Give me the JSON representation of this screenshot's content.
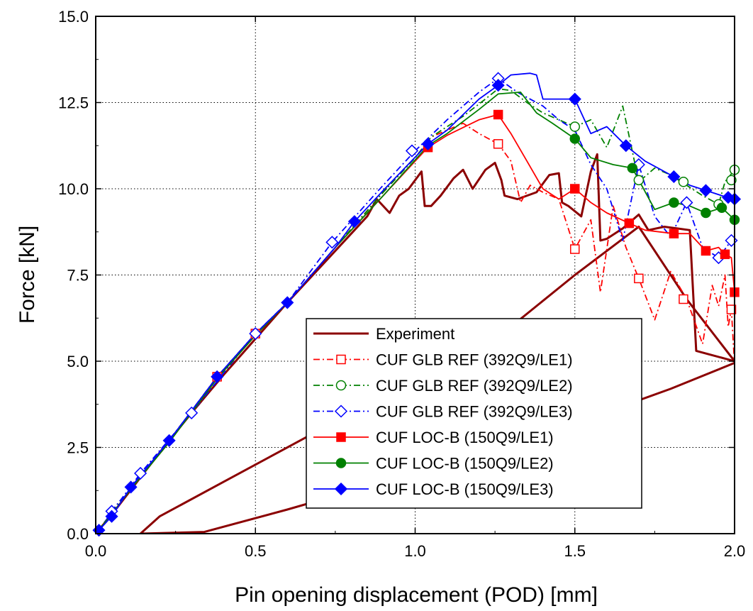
{
  "chart_data": {
    "type": "line",
    "title": "",
    "xlabel": "Pin opening displacement (POD) [mm]",
    "ylabel": "Force [kN]",
    "xlim": [
      0.0,
      2.0
    ],
    "ylim": [
      0.0,
      15.0
    ],
    "xticks": [
      0.0,
      0.5,
      1.0,
      1.5,
      2.0
    ],
    "xtick_labels": [
      "0.0",
      "0.5",
      "1.0",
      "1.5",
      "2.0"
    ],
    "yticks": [
      0.0,
      2.5,
      5.0,
      7.5,
      10.0,
      12.5,
      15.0
    ],
    "ytick_labels": [
      "0.0",
      "2.5",
      "5.0",
      "7.5",
      "10.0",
      "12.5",
      "15.0"
    ],
    "grid": true,
    "legend_position": "bottom-right",
    "series": [
      {
        "name": "Experiment",
        "color": "#8b0000",
        "style": "solid",
        "marker": "none",
        "stroke_width": 3,
        "x": [
          0.0,
          0.05,
          0.1,
          0.2,
          0.3,
          0.4,
          0.5,
          0.6,
          0.7,
          0.8,
          0.85,
          0.88,
          0.92,
          0.95,
          0.98,
          1.02,
          1.03,
          1.05,
          1.08,
          1.12,
          1.15,
          1.18,
          1.22,
          1.25,
          1.27,
          1.28,
          1.32,
          1.38,
          1.42,
          1.45,
          1.46,
          1.48,
          1.52,
          1.55,
          1.57,
          1.58,
          1.6,
          1.65,
          1.7,
          1.73,
          1.78,
          1.82,
          1.86,
          1.88,
          1.92,
          2.0,
          1.85,
          1.7,
          1.5,
          1.3,
          1.0,
          0.7,
          0.4,
          0.2,
          0.14,
          0.34,
          0.6,
          0.9,
          1.2,
          1.5,
          1.8,
          2.0
        ],
        "y": [
          0.0,
          0.55,
          1.15,
          2.35,
          3.5,
          4.6,
          5.65,
          6.7,
          7.7,
          8.7,
          9.2,
          9.7,
          9.3,
          9.8,
          10.0,
          10.5,
          9.5,
          9.5,
          9.8,
          10.3,
          10.55,
          10.0,
          10.55,
          10.75,
          10.25,
          9.8,
          9.7,
          9.9,
          10.4,
          10.45,
          9.6,
          9.5,
          9.2,
          10.5,
          11.0,
          8.5,
          8.55,
          8.85,
          9.25,
          8.8,
          8.9,
          8.85,
          8.8,
          5.3,
          5.2,
          5.0,
          6.8,
          8.9,
          7.5,
          6.0,
          4.5,
          3.0,
          1.5,
          0.5,
          0.0,
          0.05,
          0.7,
          1.5,
          2.3,
          3.2,
          4.2,
          4.95
        ]
      },
      {
        "name": "CUF GLB REF (392Q9/LE1)",
        "color": "#ff0000",
        "style": "dashdot",
        "marker": "square-open",
        "stroke_width": 1.8,
        "x": [
          0.0,
          0.05,
          0.11,
          0.23,
          0.38,
          0.5,
          0.6,
          0.75,
          0.9,
          1.0,
          1.05,
          1.15,
          1.2,
          1.26,
          1.3,
          1.33,
          1.36,
          1.4,
          1.45,
          1.5,
          1.55,
          1.58,
          1.62,
          1.66,
          1.7,
          1.75,
          1.8,
          1.85,
          1.9,
          1.93,
          1.95,
          1.97,
          1.98,
          1.99,
          2.0
        ],
        "y": [
          0.0,
          0.6,
          1.3,
          2.7,
          4.55,
          5.8,
          6.7,
          8.3,
          9.9,
          10.9,
          11.5,
          11.9,
          11.6,
          11.3,
          10.8,
          9.6,
          10.1,
          9.9,
          9.7,
          8.25,
          9.1,
          7.0,
          9.5,
          8.3,
          7.4,
          6.2,
          7.6,
          6.8,
          5.5,
          7.2,
          6.6,
          7.5,
          6.0,
          6.5,
          4.9
        ],
        "markers_x": [
          0.38,
          0.5,
          1.26,
          1.5,
          1.7,
          1.84,
          1.99
        ],
        "markers_y": [
          4.55,
          5.8,
          11.3,
          8.25,
          7.4,
          6.8,
          6.5
        ]
      },
      {
        "name": "CUF GLB REF (392Q9/LE2)",
        "color": "#008000",
        "style": "dashdot",
        "marker": "circle-open",
        "stroke_width": 1.8,
        "x": [
          0.0,
          0.05,
          0.11,
          0.23,
          0.38,
          0.5,
          0.6,
          0.75,
          0.9,
          1.0,
          1.05,
          1.15,
          1.22,
          1.26,
          1.3,
          1.35,
          1.4,
          1.45,
          1.5,
          1.55,
          1.6,
          1.65,
          1.7,
          1.75,
          1.8,
          1.85,
          1.9,
          1.95,
          1.97,
          2.0
        ],
        "y": [
          0.0,
          0.6,
          1.3,
          2.7,
          4.55,
          5.8,
          6.7,
          8.3,
          9.9,
          10.9,
          11.5,
          12.1,
          12.6,
          12.9,
          12.85,
          12.5,
          12.2,
          12.0,
          11.8,
          12.0,
          11.2,
          12.4,
          10.2,
          10.6,
          10.4,
          10.1,
          9.8,
          9.55,
          10.2,
          10.55
        ],
        "markers_x": [
          1.5,
          1.7,
          1.84,
          1.95,
          1.99,
          2.0
        ],
        "markers_y": [
          11.8,
          10.25,
          10.2,
          9.55,
          10.25,
          10.55
        ]
      },
      {
        "name": "CUF GLB REF (392Q9/LE3)",
        "color": "#0000ff",
        "style": "dashdot",
        "marker": "diamond-open",
        "stroke_width": 1.8,
        "x": [
          0.0,
          0.02,
          0.05,
          0.08,
          0.14,
          0.3,
          0.5,
          0.6,
          0.74,
          0.88,
          1.0,
          1.1,
          1.2,
          1.26,
          1.32,
          1.4,
          1.45,
          1.5,
          1.55,
          1.6,
          1.65,
          1.7,
          1.75,
          1.8,
          1.85,
          1.9,
          1.95,
          1.99,
          2.0
        ],
        "y": [
          0.0,
          0.2,
          0.65,
          1.0,
          1.75,
          3.5,
          5.8,
          6.7,
          8.45,
          9.9,
          11.1,
          12.0,
          12.8,
          13.2,
          12.8,
          12.4,
          12.0,
          11.7,
          10.7,
          10.0,
          8.5,
          10.7,
          9.2,
          8.6,
          9.6,
          8.3,
          8.0,
          8.5,
          8.7
        ],
        "markers_x": [
          0.05,
          0.14,
          0.3,
          0.5,
          0.74,
          0.99,
          1.26,
          1.7,
          1.85,
          1.95,
          1.99
        ],
        "markers_y": [
          0.65,
          1.75,
          3.5,
          5.8,
          8.45,
          11.1,
          13.2,
          10.7,
          9.6,
          8.0,
          8.5
        ]
      },
      {
        "name": "CUF LOC-B (150Q9/LE1)",
        "color": "#ff0000",
        "style": "solid",
        "marker": "square-filled",
        "stroke_width": 1.8,
        "x": [
          0.0,
          0.05,
          0.11,
          0.23,
          0.38,
          0.5,
          0.6,
          0.75,
          0.9,
          1.04,
          1.1,
          1.2,
          1.26,
          1.3,
          1.35,
          1.4,
          1.45,
          1.5,
          1.55,
          1.6,
          1.67,
          1.72,
          1.81,
          1.86,
          1.91,
          1.95,
          1.97,
          1.99,
          2.0
        ],
        "y": [
          0.0,
          0.55,
          1.3,
          2.65,
          4.5,
          5.75,
          6.7,
          8.3,
          9.8,
          11.2,
          11.55,
          12.0,
          12.15,
          11.6,
          10.8,
          10.0,
          9.7,
          10.0,
          9.6,
          9.3,
          9.0,
          8.8,
          8.7,
          8.7,
          8.2,
          8.3,
          8.1,
          8.0,
          7.0
        ],
        "markers_x": [
          1.04,
          1.26,
          1.5,
          1.67,
          1.81,
          1.91,
          1.97,
          2.0
        ],
        "markers_y": [
          11.2,
          12.15,
          10.0,
          9.0,
          8.7,
          8.2,
          8.1,
          7.0
        ]
      },
      {
        "name": "CUF LOC-B (150Q9/LE2)",
        "color": "#008000",
        "style": "solid",
        "marker": "circle-filled",
        "stroke_width": 1.8,
        "x": [
          0.0,
          0.05,
          0.11,
          0.23,
          0.38,
          0.5,
          0.6,
          0.75,
          0.9,
          1.04,
          1.1,
          1.2,
          1.26,
          1.33,
          1.38,
          1.43,
          1.5,
          1.55,
          1.62,
          1.68,
          1.75,
          1.81,
          1.86,
          1.91,
          1.96,
          2.0
        ],
        "y": [
          0.0,
          0.55,
          1.3,
          2.65,
          4.5,
          5.75,
          6.7,
          8.3,
          9.8,
          11.25,
          11.6,
          12.3,
          12.75,
          12.8,
          12.2,
          11.9,
          11.45,
          10.9,
          10.7,
          10.6,
          9.4,
          9.6,
          9.5,
          9.3,
          9.45,
          9.1
        ],
        "markers_x": [
          1.5,
          1.68,
          1.81,
          1.91,
          1.96,
          2.0
        ],
        "markers_y": [
          11.45,
          10.6,
          9.6,
          9.3,
          9.45,
          9.1
        ]
      },
      {
        "name": "CUF LOC-B (150Q9/LE3)",
        "color": "#0000ff",
        "style": "solid",
        "marker": "diamond-filled",
        "stroke_width": 1.8,
        "x": [
          0.0,
          0.01,
          0.05,
          0.11,
          0.23,
          0.38,
          0.5,
          0.6,
          0.75,
          0.81,
          0.9,
          1.04,
          1.1,
          1.2,
          1.26,
          1.3,
          1.36,
          1.38,
          1.4,
          1.45,
          1.5,
          1.55,
          1.6,
          1.66,
          1.72,
          1.81,
          1.86,
          1.91,
          1.96,
          1.98,
          2.0
        ],
        "y": [
          0.0,
          0.1,
          0.5,
          1.35,
          2.7,
          4.55,
          5.8,
          6.7,
          8.3,
          9.05,
          9.95,
          11.3,
          11.7,
          12.6,
          13.0,
          13.3,
          13.35,
          13.3,
          12.6,
          12.6,
          12.6,
          11.6,
          11.8,
          11.25,
          10.8,
          10.35,
          10.1,
          9.95,
          9.8,
          9.75,
          9.7
        ],
        "markers_x": [
          0.01,
          0.05,
          0.11,
          0.23,
          0.38,
          0.6,
          0.81,
          1.04,
          1.26,
          1.5,
          1.66,
          1.81,
          1.91,
          1.98,
          2.0
        ],
        "markers_y": [
          0.1,
          0.5,
          1.35,
          2.7,
          4.55,
          6.7,
          9.05,
          11.3,
          13.0,
          12.6,
          11.25,
          10.35,
          9.95,
          9.75,
          9.7
        ]
      }
    ]
  }
}
